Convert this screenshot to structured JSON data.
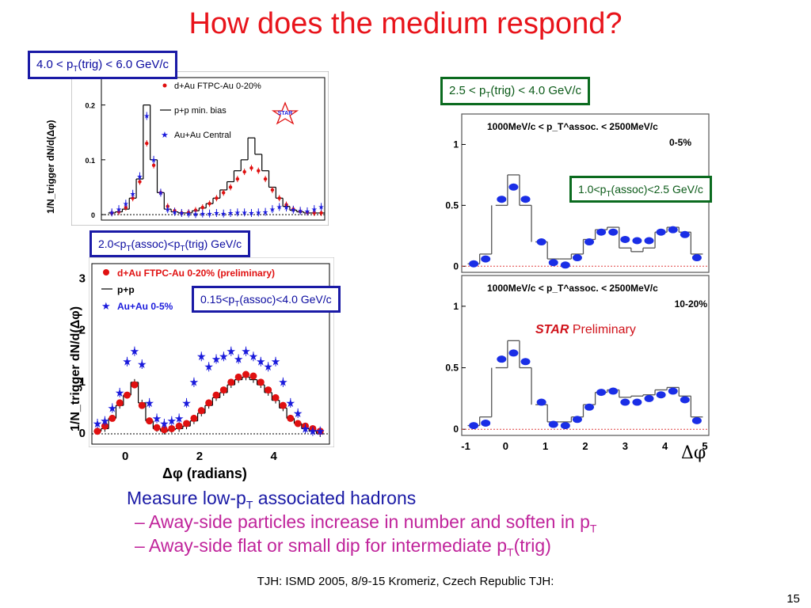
{
  "title": "How does the medium respond?",
  "labels": {
    "trig_high": {
      "a": "4.0 < p",
      "sub": "T",
      "b": "(trig) < 6.0 GeV/c"
    },
    "trig_mid": {
      "a": "2.5 < p",
      "sub": "T",
      "b": "(trig) < 4.0 GeV/c"
    },
    "assoc_mid": {
      "a": "1.0<p",
      "sub": "T",
      "b": "(assoc)<2.5 GeV/c"
    },
    "assoc_trig": {
      "a": "2.0<p",
      "sub1": "T",
      "b": "(assoc)<p",
      "sub2": "T",
      "c": "(trig) GeV/c"
    },
    "assoc_low": {
      "a": "0.15<p",
      "sub": "T",
      "b": "(assoc)<4.0 GeV/c"
    }
  },
  "star_preliminary": {
    "star": "STAR",
    "preliminary": "Preliminary"
  },
  "bullets": {
    "main": {
      "a": "Measure low-p",
      "sub": "T",
      "b": " associated hadrons"
    },
    "sub1": {
      "a": "–  Away-side particles increase in number and soften in p",
      "sub": "T"
    },
    "sub2": {
      "a": "–  Away-side flat or small dip for intermediate p",
      "sub": "T",
      "b": "(trig)"
    }
  },
  "footer": "TJH: ISMD 2005, 8/9-15 Kromeriz, Czech Republic TJH:",
  "page_number": "15",
  "chart_data": [
    {
      "type": "scatter",
      "panel": "top-left",
      "ylabel": "1/N_trigger dN/d(Δφ)",
      "y_ticks": [
        "0",
        "0.1",
        "0.2"
      ],
      "legend": [
        "d+Au FTPC-Au 0-20%",
        "p+p min. bias",
        "Au+Au Central"
      ],
      "logo": "STAR",
      "xlim": [
        -1.2,
        5.2
      ],
      "ylim": [
        -0.01,
        0.25
      ],
      "x": [
        -0.9,
        -0.7,
        -0.5,
        -0.3,
        -0.1,
        0.1,
        0.3,
        0.5,
        0.7,
        0.9,
        1.1,
        1.3,
        1.5,
        1.7,
        1.9,
        2.1,
        2.3,
        2.5,
        2.7,
        2.9,
        3.1,
        3.3,
        3.5,
        3.7,
        3.9,
        4.1,
        4.3,
        4.5,
        4.7,
        4.9,
        5.1
      ],
      "series": [
        {
          "name": "d+Au FTPC-Au 0-20%",
          "values": [
            0.003,
            0.005,
            0.013,
            0.03,
            0.06,
            0.13,
            0.09,
            0.04,
            0.015,
            0.007,
            0.003,
            0.004,
            0.008,
            0.013,
            0.02,
            0.03,
            0.04,
            0.05,
            0.065,
            0.078,
            0.085,
            0.08,
            0.065,
            0.045,
            0.03,
            0.018,
            0.01,
            0.006,
            0.004,
            0.003,
            0.003
          ]
        },
        {
          "name": "Au+Au Central",
          "values": [
            0.004,
            0.01,
            0.02,
            0.038,
            0.07,
            0.18,
            0.1,
            0.04,
            0.01,
            0.005,
            0.003,
            0.002,
            0.001,
            0.002,
            0.002,
            0.003,
            0.002,
            0.003,
            0.004,
            0.004,
            0.003,
            0.004,
            0.005,
            0.01,
            0.014,
            0.013,
            0.009,
            0.007,
            0.006,
            0.01,
            0.014
          ]
        },
        {
          "name": "p+p min. bias",
          "values": [
            0.003,
            0.005,
            0.01,
            0.03,
            0.065,
            0.2,
            0.1,
            0.04,
            0.01,
            0.005,
            0.003,
            0.003,
            0.007,
            0.012,
            0.02,
            0.03,
            0.045,
            0.06,
            0.08,
            0.1,
            0.14,
            0.11,
            0.08,
            0.05,
            0.03,
            0.015,
            0.008,
            0.005,
            0.003,
            0.003,
            0.003
          ]
        }
      ]
    },
    {
      "type": "scatter",
      "panel": "bottom-left",
      "ylabel": "1/N_trigger dN/d(Δφ)",
      "xlabel": "Δφ (radians)",
      "x_ticks": [
        "0",
        "2",
        "4"
      ],
      "y_ticks": [
        "0",
        "1",
        "2",
        "3"
      ],
      "legend": [
        "d+Au FTPC-Au 0-20% (preliminary)",
        "p+p",
        "Au+Au 0-5%"
      ],
      "xlim": [
        -0.9,
        5.5
      ],
      "ylim": [
        -0.2,
        3.3
      ],
      "x": [
        -0.75,
        -0.55,
        -0.35,
        -0.15,
        0.05,
        0.25,
        0.45,
        0.65,
        0.85,
        1.05,
        1.25,
        1.45,
        1.65,
        1.85,
        2.05,
        2.25,
        2.45,
        2.65,
        2.85,
        3.05,
        3.25,
        3.45,
        3.65,
        3.85,
        4.05,
        4.25,
        4.45,
        4.65,
        4.85,
        5.05,
        5.25
      ],
      "series": [
        {
          "name": "d+Au FTPC-Au 0-20% (preliminary)",
          "values": [
            0.05,
            0.15,
            0.3,
            0.6,
            0.75,
            0.95,
            0.55,
            0.25,
            0.12,
            0.08,
            0.1,
            0.15,
            0.2,
            0.3,
            0.45,
            0.6,
            0.75,
            0.85,
            1.0,
            1.1,
            1.15,
            1.12,
            1.0,
            0.85,
            0.7,
            0.55,
            0.3,
            0.2,
            0.15,
            0.1,
            0.05
          ]
        },
        {
          "name": "Au+Au 0-5%",
          "values": [
            0.2,
            0.25,
            0.5,
            0.8,
            1.4,
            1.6,
            1.35,
            0.6,
            0.3,
            0.2,
            0.25,
            0.3,
            0.6,
            1.0,
            1.5,
            1.3,
            1.45,
            1.5,
            1.6,
            1.45,
            1.6,
            1.5,
            1.4,
            1.3,
            1.4,
            1.0,
            0.6,
            0.4,
            0.1,
            0.05,
            0.05
          ]
        },
        {
          "name": "p+p",
          "values": [
            0.05,
            0.1,
            0.3,
            0.55,
            0.75,
            1.0,
            0.6,
            0.25,
            0.1,
            0.05,
            0.08,
            0.1,
            0.15,
            0.25,
            0.4,
            0.55,
            0.7,
            0.8,
            0.95,
            1.05,
            1.1,
            1.05,
            0.95,
            0.8,
            0.65,
            0.5,
            0.3,
            0.2,
            0.1,
            0.05,
            0.0
          ]
        }
      ]
    },
    {
      "type": "scatter",
      "panel": "top-right",
      "title": "1000MeV/c < p_T^assoc. < 2500MeV/c",
      "centrality": "0-5%",
      "y_ticks": [
        "0",
        "0.5",
        "1"
      ],
      "xlim": [
        -1.1,
        5.1
      ],
      "ylim": [
        -0.05,
        1.25
      ],
      "x": [
        -0.8,
        -0.5,
        -0.1,
        0.2,
        0.5,
        0.9,
        1.2,
        1.5,
        1.8,
        2.1,
        2.4,
        2.7,
        3.0,
        3.3,
        3.6,
        3.9,
        4.2,
        4.5,
        4.8
      ],
      "series": [
        {
          "name": "data",
          "values": [
            0.02,
            0.06,
            0.55,
            0.65,
            0.55,
            0.2,
            0.03,
            0.01,
            0.07,
            0.2,
            0.28,
            0.28,
            0.22,
            0.21,
            0.21,
            0.28,
            0.3,
            0.26,
            0.07
          ]
        },
        {
          "name": "band",
          "values": [
            0.02,
            0.1,
            0.5,
            0.75,
            0.5,
            0.2,
            0.06,
            0.06,
            0.1,
            0.22,
            0.3,
            0.32,
            0.15,
            0.12,
            0.15,
            0.28,
            0.32,
            0.28,
            0.1
          ]
        }
      ]
    },
    {
      "type": "scatter",
      "panel": "bottom-right",
      "title": "1000MeV/c < p_T^assoc. < 2500MeV/c",
      "centrality": "10-20%",
      "xlabel": "Δφ",
      "x_ticks": [
        "-1",
        "0",
        "1",
        "2",
        "3",
        "4",
        "5"
      ],
      "y_ticks": [
        "0",
        "0.5",
        "1"
      ],
      "xlim": [
        -1.1,
        5.1
      ],
      "ylim": [
        -0.05,
        1.25
      ],
      "x": [
        -0.8,
        -0.5,
        -0.1,
        0.2,
        0.5,
        0.9,
        1.2,
        1.5,
        1.8,
        2.1,
        2.4,
        2.7,
        3.0,
        3.3,
        3.6,
        3.9,
        4.2,
        4.5,
        4.8
      ],
      "series": [
        {
          "name": "data",
          "values": [
            0.03,
            0.05,
            0.57,
            0.62,
            0.55,
            0.22,
            0.04,
            0.03,
            0.08,
            0.18,
            0.3,
            0.31,
            0.22,
            0.22,
            0.25,
            0.28,
            0.31,
            0.24,
            0.07
          ]
        },
        {
          "name": "band",
          "values": [
            0.03,
            0.1,
            0.5,
            0.72,
            0.5,
            0.2,
            0.06,
            0.06,
            0.1,
            0.2,
            0.3,
            0.32,
            0.26,
            0.27,
            0.28,
            0.32,
            0.34,
            0.27,
            0.1
          ]
        }
      ]
    }
  ]
}
